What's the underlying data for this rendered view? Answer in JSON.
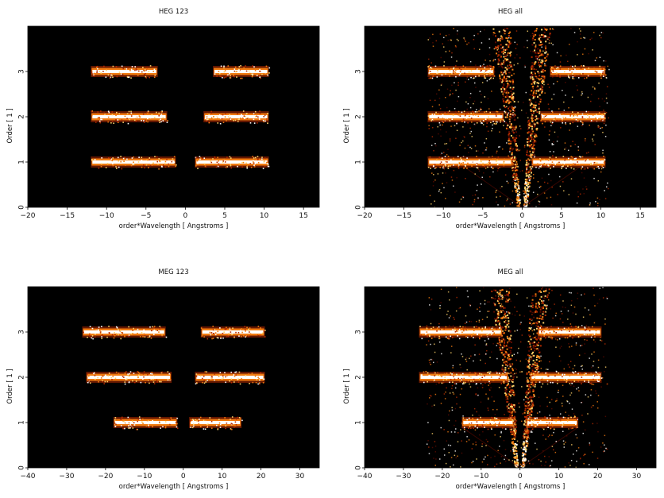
{
  "figure": {
    "colormap": [
      "#000000",
      "#5a0a00",
      "#b42a00",
      "#f07a10",
      "#ffd36a",
      "#ffffff"
    ],
    "background": "#000000"
  },
  "chart_data": [
    {
      "type": "heatmap",
      "title": "HEG 123",
      "xlabel": "order*Wavelength [ Angstroms ]",
      "ylabel": "Order [ 1 ]",
      "xlim": [
        -20,
        17
      ],
      "ylim": [
        0,
        4
      ],
      "xticks": [
        -20,
        -15,
        -10,
        -5,
        0,
        5,
        10,
        15
      ],
      "yticks": [
        0,
        1,
        2,
        3
      ],
      "bands": [
        {
          "order": 1,
          "segments": [
            [
              -12,
              -1.2
            ],
            [
              1.2,
              10.6
            ]
          ]
        },
        {
          "order": 2,
          "segments": [
            [
              -12,
              -2.3
            ],
            [
              2.3,
              10.6
            ]
          ]
        },
        {
          "order": 3,
          "segments": [
            [
              -12,
              -3.5
            ],
            [
              3.5,
              10.6
            ]
          ]
        }
      ],
      "zero_order_cone": false
    },
    {
      "type": "heatmap",
      "title": "HEG all",
      "xlabel": "order*Wavelength [ Angstroms ]",
      "ylabel": "Order [ 1 ]",
      "xlim": [
        -20,
        17
      ],
      "ylim": [
        0,
        4
      ],
      "xticks": [
        -20,
        -15,
        -10,
        -5,
        0,
        5,
        10,
        15
      ],
      "yticks": [
        0,
        1,
        2,
        3
      ],
      "bands": [
        {
          "order": 1,
          "segments": [
            [
              -12,
              -1.2
            ],
            [
              1.2,
              10.6
            ]
          ]
        },
        {
          "order": 2,
          "segments": [
            [
              -12,
              -2.3
            ],
            [
              2.3,
              10.6
            ]
          ]
        },
        {
          "order": 3,
          "segments": [
            [
              -12,
              -3.5
            ],
            [
              3.5,
              10.6
            ]
          ]
        }
      ],
      "zero_order_cone": true
    },
    {
      "type": "heatmap",
      "title": "MEG 123",
      "xlabel": "order*Wavelength [ Angstroms ]",
      "ylabel": "Order [ 1 ]",
      "xlim": [
        -40,
        35
      ],
      "ylim": [
        0,
        4
      ],
      "xticks": [
        -40,
        -30,
        -20,
        -10,
        0,
        10,
        20,
        30
      ],
      "yticks": [
        0,
        1,
        2,
        3
      ],
      "bands": [
        {
          "order": 1,
          "segments": [
            [
              -18,
              -1.5
            ],
            [
              1.5,
              15
            ]
          ]
        },
        {
          "order": 2,
          "segments": [
            [
              -25,
              -3
            ],
            [
              3,
              21
            ]
          ]
        },
        {
          "order": 3,
          "segments": [
            [
              -26,
              -4.5
            ],
            [
              4.5,
              21
            ]
          ]
        }
      ],
      "zero_order_cone": false
    },
    {
      "type": "heatmap",
      "title": "MEG all",
      "xlabel": "order*Wavelength [ Angstroms ]",
      "ylabel": "Order [ 1 ]",
      "xlim": [
        -40,
        35
      ],
      "ylim": [
        0,
        4
      ],
      "xticks": [
        -40,
        -30,
        -20,
        -10,
        0,
        10,
        20,
        30
      ],
      "yticks": [
        0,
        1,
        2,
        3
      ],
      "bands": [
        {
          "order": 1,
          "segments": [
            [
              -15,
              -1.5
            ],
            [
              1.5,
              15
            ]
          ]
        },
        {
          "order": 2,
          "segments": [
            [
              -26,
              -3
            ],
            [
              2.5,
              21
            ]
          ]
        },
        {
          "order": 3,
          "segments": [
            [
              -26,
              -4.5
            ],
            [
              4.5,
              21
            ]
          ]
        }
      ],
      "zero_order_cone": true
    }
  ]
}
